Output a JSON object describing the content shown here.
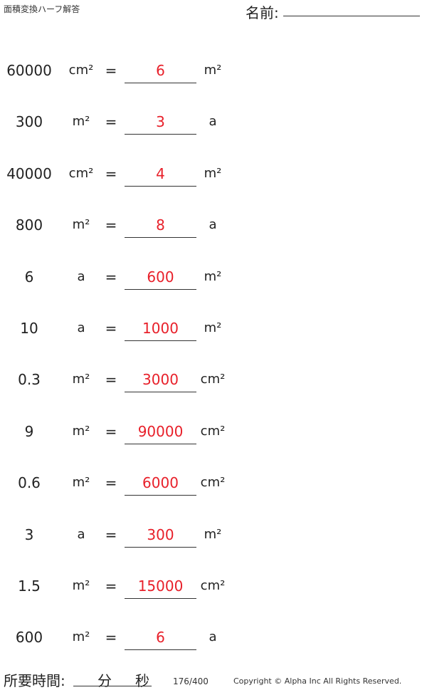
{
  "title": "面積変換ハーフ解答",
  "name_label": "名前:",
  "problems": [
    {
      "value": "60000",
      "from": "cm²",
      "answer": "6",
      "to": "m²"
    },
    {
      "value": "300",
      "from": "m²",
      "answer": "3",
      "to": "a"
    },
    {
      "value": "40000",
      "from": "cm²",
      "answer": "4",
      "to": "m²"
    },
    {
      "value": "800",
      "from": "m²",
      "answer": "8",
      "to": "a"
    },
    {
      "value": "6",
      "from": "a",
      "answer": "600",
      "to": "m²"
    },
    {
      "value": "10",
      "from": "a",
      "answer": "1000",
      "to": "m²"
    },
    {
      "value": "0.3",
      "from": "m²",
      "answer": "3000",
      "to": "cm²"
    },
    {
      "value": "9",
      "from": "m²",
      "answer": "90000",
      "to": "cm²"
    },
    {
      "value": "0.6",
      "from": "m²",
      "answer": "6000",
      "to": "cm²"
    },
    {
      "value": "3",
      "from": "a",
      "answer": "300",
      "to": "m²"
    },
    {
      "value": "1.5",
      "from": "m²",
      "answer": "15000",
      "to": "cm²"
    },
    {
      "value": "600",
      "from": "m²",
      "answer": "6",
      "to": "a"
    }
  ],
  "equals": "=",
  "footer": {
    "time_label": "所要時間:",
    "minutes": "分",
    "seconds": "秒",
    "page": "176/400",
    "copyright": "Copyright © Alpha Inc All Rights Reserved."
  },
  "answer_color": "#e8202a"
}
